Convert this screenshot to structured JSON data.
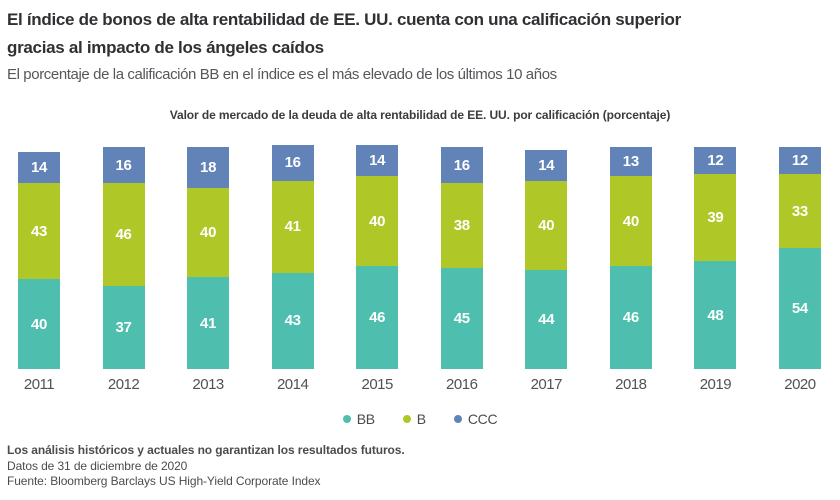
{
  "header": {
    "title_line1": "El índice de bonos de alta rentabilidad de EE. UU. cuenta con una calificación superior",
    "title_line2": "gracias al impacto de los ángeles caídos",
    "subtitle": "El porcentaje de la calificación BB en el índice es el más elevado de los últimos 10 años"
  },
  "chart_data": {
    "type": "bar",
    "stacked": true,
    "title": "Valor de mercado de la deuda de alta rentabilidad de EE. UU. por calificación (porcentaje)",
    "categories": [
      "2011",
      "2012",
      "2013",
      "2014",
      "2015",
      "2016",
      "2017",
      "2018",
      "2019",
      "2020"
    ],
    "series": [
      {
        "name": "BB",
        "color": "#4ebfae",
        "values": [
          40,
          37,
          41,
          43,
          46,
          45,
          44,
          46,
          48,
          54
        ]
      },
      {
        "name": "B",
        "color": "#afc827",
        "values": [
          43,
          46,
          40,
          41,
          40,
          38,
          40,
          40,
          39,
          33
        ]
      },
      {
        "name": "CCC",
        "color": "#6183b7",
        "values": [
          14,
          16,
          18,
          16,
          14,
          16,
          14,
          13,
          12,
          12
        ]
      }
    ],
    "ylim": [
      0,
      100
    ],
    "grid": false,
    "axis_lines": false,
    "legend_position": "bottom",
    "value_labels": "inside-segments-white"
  },
  "colors": {
    "bb_teal": "#4ebfae",
    "b_green": "#afc827",
    "ccc_blue": "#6183b7",
    "background": "#ffffff"
  },
  "footer": {
    "disclaimer": "Los análisis históricos y actuales no garantizan los resultados futuros.",
    "as_of": "Datos de 31 de diciembre de 2020",
    "source": "Fuente: Bloomberg Barclays US High-Yield Corporate Index"
  }
}
